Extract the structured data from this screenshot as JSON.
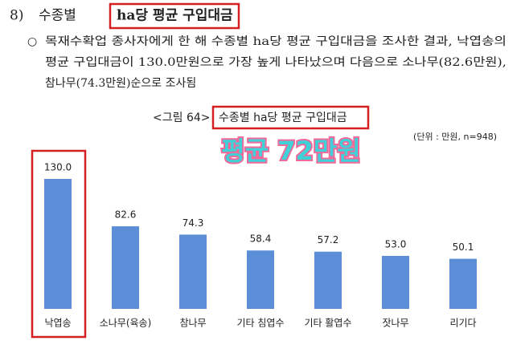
{
  "heading": {
    "number": "8)",
    "prefix": "수종별",
    "boxed": "ha당 평균 구입대금"
  },
  "paragraph": {
    "bullet": "○",
    "lines": [
      "목재수확업 종사자에게 한 해 수종별 ha당 평균 구입대금을 조사한 결과, 낙엽송의",
      "평균 구입대금이 130.0만원으로 가장 높게 나타났으며 다음으로 소나무(82.6만원),",
      "참나무(74.3만원)순으로 조사됨"
    ]
  },
  "figure": {
    "label": "<그림 64>",
    "title": "수종별 ha당 평균 구입대금",
    "unit": "(단위 : 만원, n=948)",
    "annotation": "평균 72만원"
  },
  "chart_data": {
    "type": "bar",
    "categories": [
      "낙엽송",
      "소나무(육송)",
      "참나무",
      "기타 침엽수",
      "기타 활엽수",
      "잣나무",
      "리기다"
    ],
    "values": [
      130.0,
      82.6,
      74.3,
      58.4,
      57.2,
      53.0,
      50.1
    ],
    "value_labels": [
      "130.0",
      "82.6",
      "74.3",
      "58.4",
      "57.2",
      "53.0",
      "50.1"
    ],
    "color": "#5b8ed6",
    "ylim": [
      0,
      130
    ]
  }
}
